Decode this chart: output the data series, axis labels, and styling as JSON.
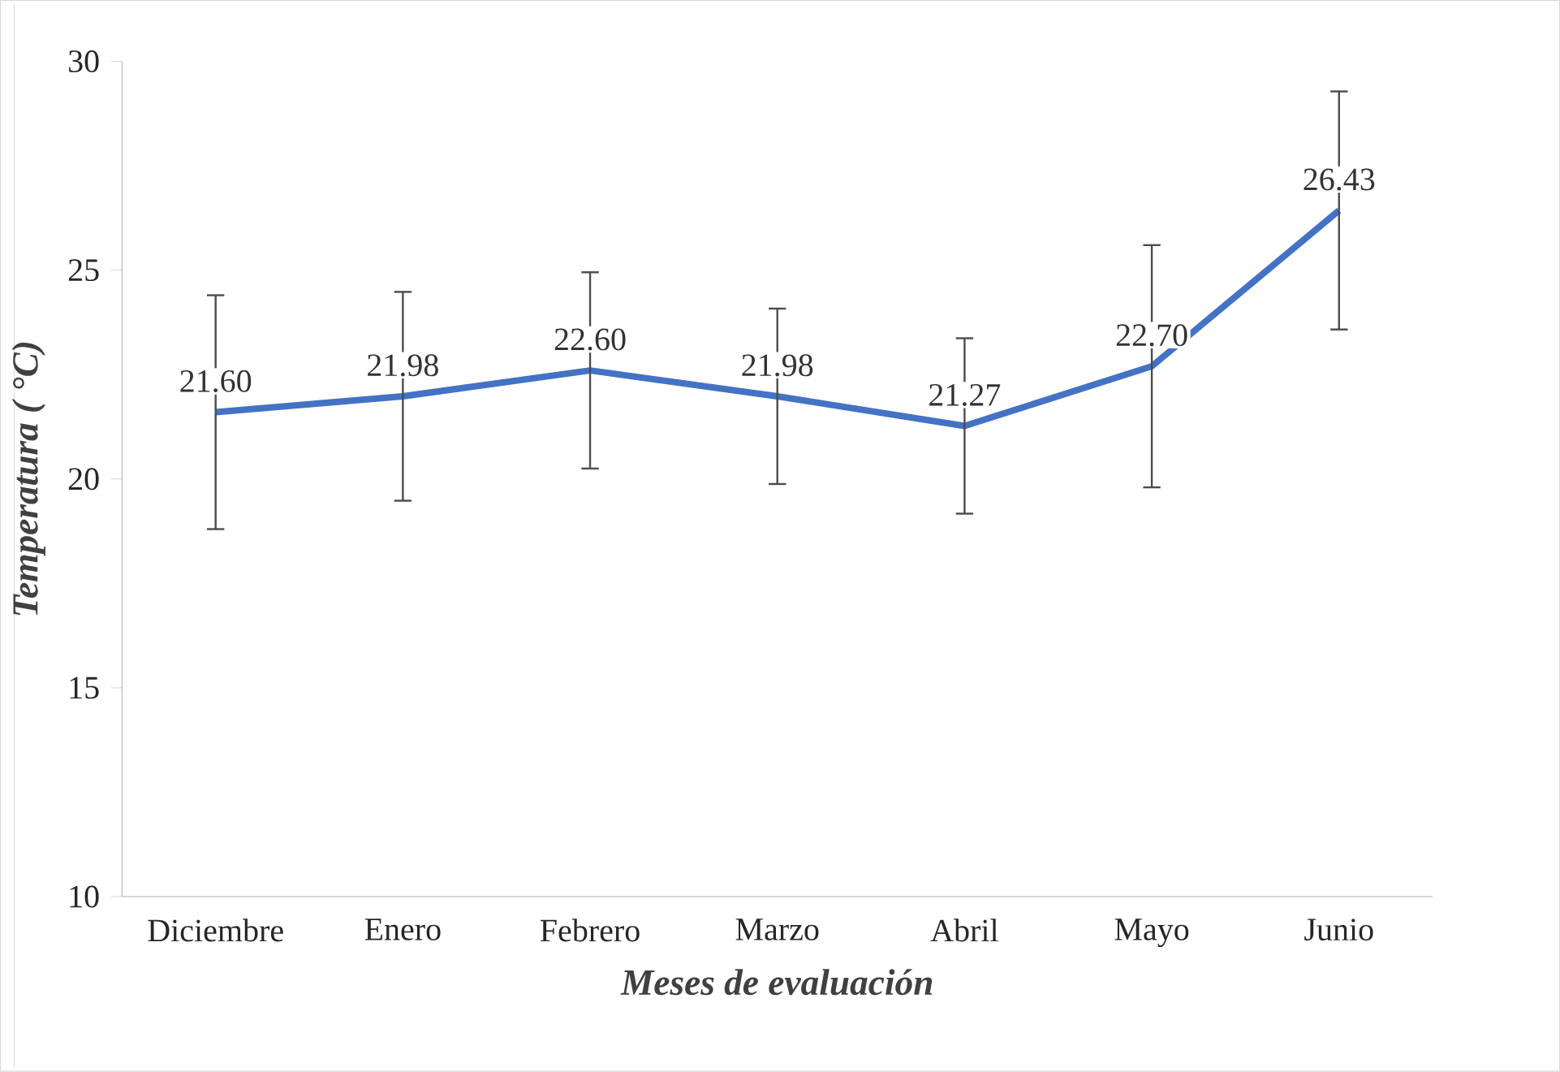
{
  "chart_data": {
    "type": "line",
    "xlabel": "Meses de evaluación",
    "ylabel": "Temperatura ( °C)",
    "categories": [
      "Diciembre",
      "Enero",
      "Febrero",
      "Marzo",
      "Abril",
      "Mayo",
      "Junio"
    ],
    "values": [
      21.6,
      21.98,
      22.6,
      21.98,
      21.27,
      22.7,
      26.43
    ],
    "errors": [
      2.8,
      2.5,
      2.35,
      2.1,
      2.1,
      2.9,
      2.85
    ],
    "value_labels": [
      "21.60",
      "21.98",
      "22.60",
      "21.98",
      "21.27",
      "22.70",
      "26.43"
    ],
    "color": "#4472c4",
    "ylim": [
      10,
      30
    ],
    "yticks": [
      10,
      15,
      20,
      25,
      30
    ],
    "grid": false,
    "marker": "none",
    "line_style": "solid"
  }
}
